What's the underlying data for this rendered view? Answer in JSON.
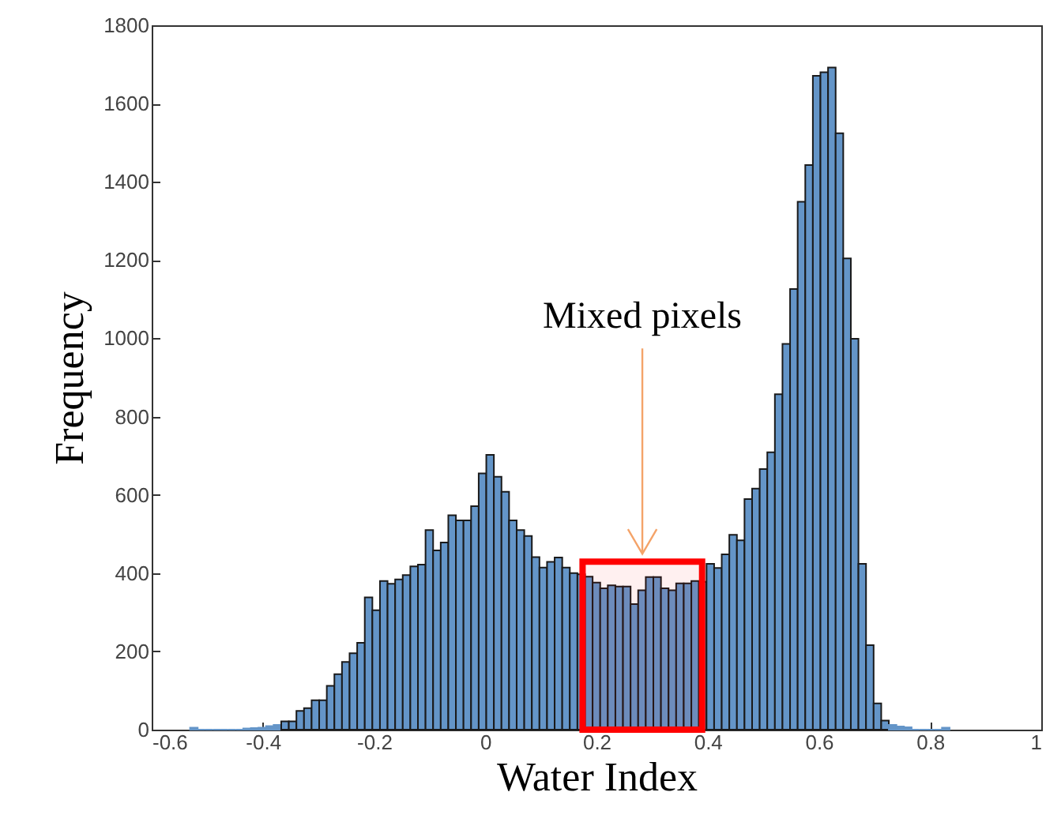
{
  "chart_data": {
    "type": "histogram",
    "xlabel": "Water Index",
    "ylabel": "Frequency",
    "bins": [
      -0.53092,
      -0.51726,
      -0.5036,
      -0.48994,
      -0.47628,
      -0.46262,
      -0.44896,
      -0.4353,
      -0.42164,
      -0.40798,
      -0.39432,
      -0.38066,
      -0.367,
      -0.35334,
      -0.33968,
      -0.32602,
      -0.31236,
      -0.2987,
      -0.28504,
      -0.27138,
      -0.25772,
      -0.24406,
      -0.2304,
      -0.21674,
      -0.20308,
      -0.18942,
      -0.17576,
      -0.1621,
      -0.14844,
      -0.13478,
      -0.12112,
      -0.10746,
      -0.0938,
      -0.08014,
      -0.06648,
      -0.05282,
      -0.03916,
      -0.0255,
      -0.01184,
      0.00182,
      0.01548,
      0.02914,
      0.0428,
      0.05646,
      0.07012,
      0.08378,
      0.09744,
      0.1111,
      0.12476,
      0.13842,
      0.15208,
      0.16574,
      0.1794,
      0.19306,
      0.20672,
      0.22038,
      0.23404,
      0.2477,
      0.26136,
      0.27502,
      0.28868,
      0.30234,
      0.316,
      0.32966,
      0.34332,
      0.35698,
      0.37064,
      0.3843,
      0.39796,
      0.41162,
      0.42528,
      0.43894,
      0.4526,
      0.46626,
      0.47992,
      0.49358,
      0.50724,
      0.5209,
      0.53456,
      0.54822,
      0.56188,
      0.57554,
      0.5892,
      0.60286,
      0.61652,
      0.63018,
      0.64384,
      0.6575,
      0.67116,
      0.68482,
      0.69848,
      0.71214,
      0.7258,
      0.73946,
      0.75312,
      0.76678,
      0.78044,
      0.7941,
      0.80776,
      0.82142,
      0.83508
    ],
    "values": [
      5,
      0,
      0,
      0,
      0,
      0,
      0,
      3,
      4,
      5,
      9,
      12,
      21,
      21,
      48,
      55,
      75,
      75,
      112,
      142,
      173,
      195,
      222,
      338,
      305,
      380,
      373,
      384,
      395,
      417,
      422,
      510,
      458,
      478,
      548,
      535,
      535,
      571,
      655,
      702,
      646,
      608,
      535,
      510,
      495,
      441,
      414,
      429,
      440,
      414,
      400,
      397,
      391,
      376,
      361,
      369,
      366,
      366,
      321,
      356,
      390,
      390,
      361,
      356,
      374,
      374,
      380,
      378,
      424,
      413,
      448,
      498,
      484,
      589,
      616,
      666,
      709,
      857,
      986,
      1126,
      1349,
      1443,
      1671,
      1680,
      1692,
      1524,
      1204,
      999,
      424,
      216,
      67,
      23,
      12,
      8,
      6,
      0,
      0,
      0,
      0,
      5
    ],
    "color": "#6495c8",
    "xlim": [
      -0.6,
      1
    ],
    "xticks": [
      -0.6,
      -0.4,
      -0.2,
      0,
      0.2,
      0.4,
      0.6,
      0.8,
      1
    ],
    "ylim": [
      0,
      1800
    ],
    "yticks": [
      0,
      200,
      400,
      600,
      800,
      1000,
      1200,
      1400,
      1600,
      1800
    ],
    "annotations": [
      "Mixed pixels"
    ],
    "bands": [
      {
        "axis": "x",
        "from": 0.175,
        "to": 0.39,
        "color": "#ff0000"
      }
    ]
  }
}
